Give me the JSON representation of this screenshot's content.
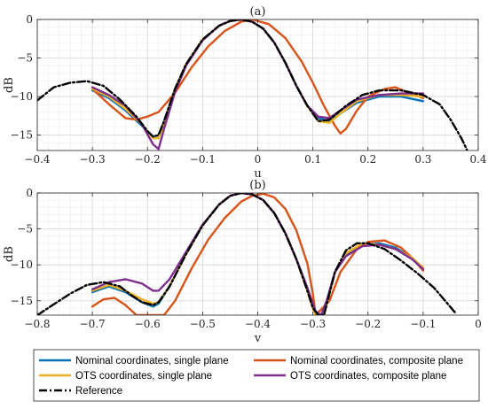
{
  "chart_data": [
    {
      "type": "line",
      "title": "(a)",
      "xlabel": "u",
      "ylabel": "dB",
      "xlim": [
        -0.4,
        0.4
      ],
      "ylim": [
        -17,
        0
      ],
      "xticks": [
        -0.4,
        -0.3,
        -0.2,
        -0.1,
        0,
        0.1,
        0.2,
        0.3,
        0.4
      ],
      "xtick_labels": [
        "−0.4",
        "−0.3",
        "−0.2",
        "−0.1",
        "0",
        "0.1",
        "0.2",
        "0.3",
        "0.4"
      ],
      "yticks": [
        0,
        -5,
        -10,
        -15
      ],
      "ytick_labels": [
        "0",
        "−5",
        "−10",
        "−15"
      ],
      "grid": true,
      "series": [
        {
          "name": "Nominal coordinates, single plane",
          "color": "#0072bd",
          "dash": "solid",
          "x": [
            -0.3,
            -0.27,
            -0.24,
            -0.21,
            -0.19,
            -0.18,
            -0.17,
            -0.15,
            -0.13,
            -0.1,
            -0.07,
            -0.05,
            -0.03,
            -0.01,
            0.01,
            0.03,
            0.05,
            0.07,
            0.09,
            0.11,
            0.13,
            0.15,
            0.18,
            0.22,
            0.26,
            0.3
          ],
          "y": [
            -9.2,
            -10.2,
            -11.8,
            -13.8,
            -15.2,
            -15.0,
            -13.2,
            -9.0,
            -5.8,
            -2.6,
            -0.8,
            -0.2,
            0.0,
            -0.3,
            -1.2,
            -3.0,
            -5.6,
            -8.6,
            -11.2,
            -12.8,
            -13.2,
            -12.2,
            -10.8,
            -10.0,
            -10.0,
            -10.6
          ]
        },
        {
          "name": "Nominal coordinates, composite plane",
          "color": "#d95319",
          "dash": "solid",
          "x": [
            -0.3,
            -0.27,
            -0.24,
            -0.22,
            -0.2,
            -0.18,
            -0.15,
            -0.12,
            -0.09,
            -0.06,
            -0.03,
            -0.01,
            0.02,
            0.05,
            0.08,
            0.1,
            0.12,
            0.14,
            0.15,
            0.16,
            0.18,
            0.2,
            0.23,
            0.25,
            0.27,
            0.3
          ],
          "y": [
            -9.0,
            -11.0,
            -12.8,
            -13.0,
            -12.6,
            -12.0,
            -9.5,
            -6.2,
            -3.5,
            -1.5,
            -0.3,
            0.0,
            -0.6,
            -2.4,
            -5.5,
            -8.2,
            -11.2,
            -13.8,
            -14.8,
            -14.2,
            -11.8,
            -10.0,
            -9.0,
            -8.8,
            -9.4,
            -10.2
          ]
        },
        {
          "name": "OTS coordinates, single plane",
          "color": "#edb120",
          "dash": "solid",
          "x": [
            -0.3,
            -0.27,
            -0.24,
            -0.21,
            -0.19,
            -0.18,
            -0.17,
            -0.15,
            -0.13,
            -0.1,
            -0.07,
            -0.05,
            -0.03,
            -0.01,
            0.01,
            0.03,
            0.05,
            0.07,
            0.09,
            0.11,
            0.13,
            0.15,
            0.18,
            0.22,
            0.26,
            0.3
          ],
          "y": [
            -9.0,
            -10.0,
            -11.6,
            -13.6,
            -15.4,
            -15.4,
            -13.4,
            -9.0,
            -5.8,
            -2.6,
            -0.8,
            -0.2,
            0.0,
            -0.3,
            -1.2,
            -3.0,
            -5.6,
            -8.6,
            -11.2,
            -13.2,
            -13.4,
            -12.2,
            -10.6,
            -9.8,
            -9.8,
            -10.0
          ]
        },
        {
          "name": "OTS coordinates, composite plane",
          "color": "#7e2f8e",
          "dash": "solid",
          "x": [
            -0.3,
            -0.27,
            -0.24,
            -0.21,
            -0.19,
            -0.18,
            -0.17,
            -0.15,
            -0.13,
            -0.1,
            -0.07,
            -0.05,
            -0.03,
            -0.01,
            0.01,
            0.03,
            0.05,
            0.07,
            0.09,
            0.11,
            0.13,
            0.15,
            0.18,
            0.22,
            0.26,
            0.3
          ],
          "y": [
            -8.8,
            -9.8,
            -11.2,
            -13.6,
            -16.2,
            -16.8,
            -14.2,
            -9.4,
            -6.0,
            -2.7,
            -0.8,
            -0.2,
            0.0,
            -0.3,
            -1.2,
            -3.0,
            -5.6,
            -8.6,
            -11.2,
            -12.6,
            -12.8,
            -11.8,
            -10.4,
            -9.8,
            -9.6,
            -9.6
          ]
        },
        {
          "name": "Reference",
          "color": "#000000",
          "dash": "dashdot",
          "x": [
            -0.4,
            -0.37,
            -0.34,
            -0.31,
            -0.28,
            -0.25,
            -0.22,
            -0.2,
            -0.19,
            -0.18,
            -0.17,
            -0.15,
            -0.13,
            -0.1,
            -0.07,
            -0.05,
            -0.03,
            -0.01,
            0.01,
            0.03,
            0.05,
            0.07,
            0.09,
            0.11,
            0.13,
            0.16,
            0.19,
            0.22,
            0.26,
            0.3,
            0.33,
            0.35,
            0.37,
            0.38
          ],
          "y": [
            -10.5,
            -8.8,
            -8.2,
            -8.0,
            -8.6,
            -10.4,
            -12.6,
            -14.5,
            -15.2,
            -15.0,
            -13.2,
            -9.0,
            -5.8,
            -2.6,
            -0.8,
            -0.2,
            0.0,
            -0.3,
            -1.2,
            -3.0,
            -5.6,
            -8.6,
            -11.2,
            -13.2,
            -13.0,
            -11.2,
            -9.8,
            -9.2,
            -9.2,
            -9.8,
            -11.0,
            -13.0,
            -15.5,
            -17.0
          ]
        }
      ]
    },
    {
      "type": "line",
      "title": "(b)",
      "xlabel": "v",
      "ylabel": "dB",
      "xlim": [
        -0.8,
        0
      ],
      "ylim": [
        -17,
        0
      ],
      "xticks": [
        -0.8,
        -0.7,
        -0.6,
        -0.5,
        -0.4,
        -0.3,
        -0.2,
        -0.1,
        0
      ],
      "xtick_labels": [
        "−0.8",
        "−0.7",
        "−0.6",
        "−0.5",
        "−0.4",
        "−0.3",
        "−0.2",
        "−0.1",
        "0"
      ],
      "yticks": [
        0,
        -5,
        -10,
        -15
      ],
      "ytick_labels": [
        "0",
        "−5",
        "−10",
        "−15"
      ],
      "grid": true,
      "series": [
        {
          "name": "Nominal coordinates, single plane",
          "color": "#0072bd",
          "dash": "solid",
          "x": [
            -0.7,
            -0.67,
            -0.64,
            -0.61,
            -0.59,
            -0.58,
            -0.56,
            -0.53,
            -0.5,
            -0.47,
            -0.45,
            -0.43,
            -0.41,
            -0.39,
            -0.37,
            -0.35,
            -0.33,
            -0.31,
            -0.295,
            -0.285,
            -0.275,
            -0.26,
            -0.24,
            -0.21,
            -0.18,
            -0.15,
            -0.12,
            -0.1
          ],
          "y": [
            -13.8,
            -13.0,
            -13.8,
            -15.2,
            -15.8,
            -15.4,
            -13.0,
            -8.5,
            -4.5,
            -1.6,
            -0.4,
            0.0,
            -0.2,
            -1.0,
            -2.8,
            -5.6,
            -9.2,
            -13.2,
            -16.5,
            -17.0,
            -15.0,
            -11.0,
            -8.6,
            -7.2,
            -7.0,
            -7.6,
            -9.0,
            -10.6
          ]
        },
        {
          "name": "Nominal coordinates, composite plane",
          "color": "#d95319",
          "dash": "solid",
          "x": [
            -0.7,
            -0.68,
            -0.66,
            -0.64,
            -0.62,
            -0.6,
            -0.58,
            -0.57,
            -0.55,
            -0.52,
            -0.49,
            -0.46,
            -0.43,
            -0.41,
            -0.39,
            -0.37,
            -0.35,
            -0.33,
            -0.31,
            -0.3,
            -0.295,
            -0.27,
            -0.25,
            -0.22,
            -0.2,
            -0.17,
            -0.14,
            -0.12,
            -0.1
          ],
          "y": [
            -15.8,
            -14.8,
            -14.6,
            -15.6,
            -17.0,
            -17.0,
            -17.0,
            -17.0,
            -15.0,
            -10.5,
            -6.5,
            -3.5,
            -1.2,
            -0.4,
            -0.1,
            -0.6,
            -2.2,
            -5.2,
            -9.8,
            -14.0,
            -17.0,
            -15.0,
            -11.0,
            -7.8,
            -6.8,
            -6.6,
            -7.6,
            -9.0,
            -10.8
          ]
        },
        {
          "name": "OTS coordinates, single plane",
          "color": "#edb120",
          "dash": "solid",
          "x": [
            -0.7,
            -0.67,
            -0.64,
            -0.61,
            -0.59,
            -0.58,
            -0.56,
            -0.53,
            -0.5,
            -0.47,
            -0.45,
            -0.43,
            -0.41,
            -0.39,
            -0.37,
            -0.35,
            -0.33,
            -0.31,
            -0.3,
            -0.295,
            -0.28,
            -0.27,
            -0.26,
            -0.24,
            -0.21,
            -0.18,
            -0.15,
            -0.12,
            -0.1
          ],
          "y": [
            -13.6,
            -12.8,
            -13.6,
            -14.8,
            -15.4,
            -15.2,
            -13.0,
            -8.5,
            -4.5,
            -1.6,
            -0.4,
            0.0,
            -0.2,
            -1.0,
            -2.8,
            -5.6,
            -9.2,
            -13.6,
            -16.0,
            -17.0,
            -17.0,
            -14.0,
            -11.0,
            -8.4,
            -7.0,
            -7.2,
            -7.8,
            -9.0,
            -10.4
          ]
        },
        {
          "name": "OTS coordinates, composite plane",
          "color": "#7e2f8e",
          "dash": "solid",
          "x": [
            -0.7,
            -0.67,
            -0.64,
            -0.61,
            -0.59,
            -0.58,
            -0.56,
            -0.53,
            -0.5,
            -0.47,
            -0.45,
            -0.43,
            -0.41,
            -0.39,
            -0.37,
            -0.35,
            -0.33,
            -0.31,
            -0.295,
            -0.285,
            -0.275,
            -0.26,
            -0.24,
            -0.21,
            -0.18,
            -0.15,
            -0.12,
            -0.1
          ],
          "y": [
            -13.4,
            -12.4,
            -12.0,
            -12.6,
            -13.6,
            -13.6,
            -12.0,
            -8.2,
            -4.4,
            -1.6,
            -0.4,
            0.0,
            -0.2,
            -1.0,
            -2.8,
            -5.6,
            -9.2,
            -13.2,
            -16.5,
            -17.0,
            -15.0,
            -11.0,
            -8.8,
            -7.4,
            -7.2,
            -7.8,
            -9.2,
            -10.6
          ]
        },
        {
          "name": "Reference",
          "color": "#000000",
          "dash": "dashdot",
          "x": [
            -0.8,
            -0.77,
            -0.74,
            -0.71,
            -0.68,
            -0.65,
            -0.63,
            -0.61,
            -0.59,
            -0.58,
            -0.56,
            -0.53,
            -0.5,
            -0.47,
            -0.45,
            -0.43,
            -0.41,
            -0.39,
            -0.37,
            -0.35,
            -0.33,
            -0.31,
            -0.3,
            -0.29,
            -0.28,
            -0.27,
            -0.26,
            -0.24,
            -0.22,
            -0.2,
            -0.17,
            -0.14,
            -0.11,
            -0.08,
            -0.06,
            -0.04
          ],
          "y": [
            -17.0,
            -15.5,
            -14.0,
            -12.8,
            -12.4,
            -13.0,
            -14.2,
            -15.2,
            -15.6,
            -15.2,
            -13.0,
            -8.5,
            -4.5,
            -1.6,
            -0.4,
            0.0,
            -0.2,
            -1.0,
            -2.8,
            -5.6,
            -9.2,
            -13.6,
            -16.0,
            -17.0,
            -17.0,
            -14.0,
            -11.0,
            -8.0,
            -7.0,
            -7.0,
            -7.8,
            -9.4,
            -11.2,
            -13.2,
            -15.0,
            -16.8
          ]
        }
      ]
    }
  ],
  "legend": {
    "placement": "bottom",
    "entries": [
      {
        "label": "Nominal coordinates, single plane",
        "color": "#0072bd",
        "dash": "solid"
      },
      {
        "label": "Nominal coordinates, composite plane",
        "color": "#d95319",
        "dash": "solid"
      },
      {
        "label": "OTS coordinates, single plane",
        "color": "#edb120",
        "dash": "solid"
      },
      {
        "label": "OTS coordinates, composite plane",
        "color": "#7e2f8e",
        "dash": "solid"
      },
      {
        "label": "Reference",
        "color": "#000000",
        "dash": "dashdot"
      }
    ]
  }
}
